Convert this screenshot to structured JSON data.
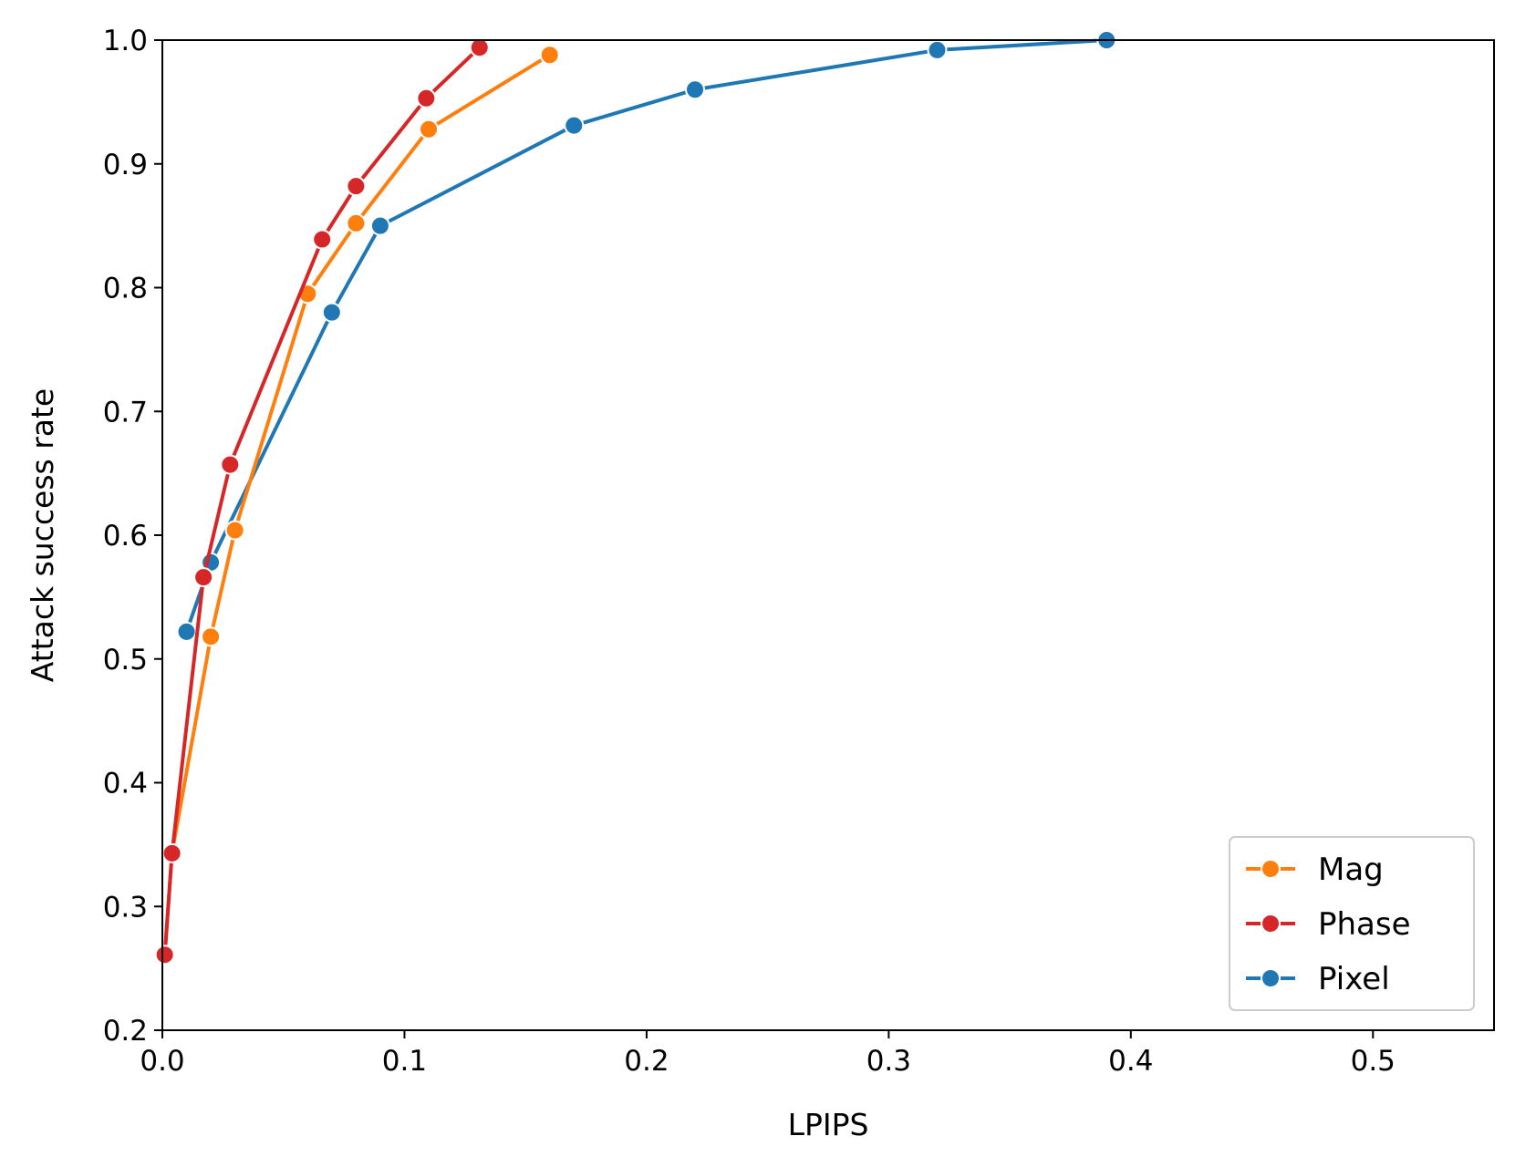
{
  "chart_data": {
    "type": "line",
    "title": "",
    "xlabel": "LPIPS",
    "ylabel": "Attack success rate",
    "xlim": [
      0.0,
      0.55
    ],
    "ylim": [
      0.2,
      1.0
    ],
    "x_ticks": [
      "0.0",
      "0.1",
      "0.2",
      "0.3",
      "0.4",
      "0.5"
    ],
    "y_ticks": [
      "0.2",
      "0.3",
      "0.4",
      "0.5",
      "0.6",
      "0.7",
      "0.8",
      "0.9",
      "1.0"
    ],
    "grid": false,
    "legend_position": "lower-right",
    "series": [
      {
        "name": "Mag",
        "color": "#ff7f0e",
        "x": [
          0.001,
          0.004,
          0.02,
          0.03,
          0.06,
          0.08,
          0.11,
          0.16
        ],
        "y": [
          0.262,
          0.343,
          0.518,
          0.604,
          0.795,
          0.852,
          0.928,
          0.988
        ]
      },
      {
        "name": "Phase",
        "color": "#d62728",
        "x": [
          0.001,
          0.004,
          0.017,
          0.028,
          0.066,
          0.08,
          0.109,
          0.131
        ],
        "y": [
          0.261,
          0.343,
          0.566,
          0.657,
          0.839,
          0.882,
          0.953,
          0.994
        ]
      },
      {
        "name": "Pixel",
        "color": "#1f77b4",
        "x": [
          0.01,
          0.02,
          0.07,
          0.09,
          0.17,
          0.22,
          0.32,
          0.39
        ],
        "y": [
          0.522,
          0.578,
          0.78,
          0.85,
          0.931,
          0.96,
          0.992,
          1.0
        ]
      }
    ]
  }
}
